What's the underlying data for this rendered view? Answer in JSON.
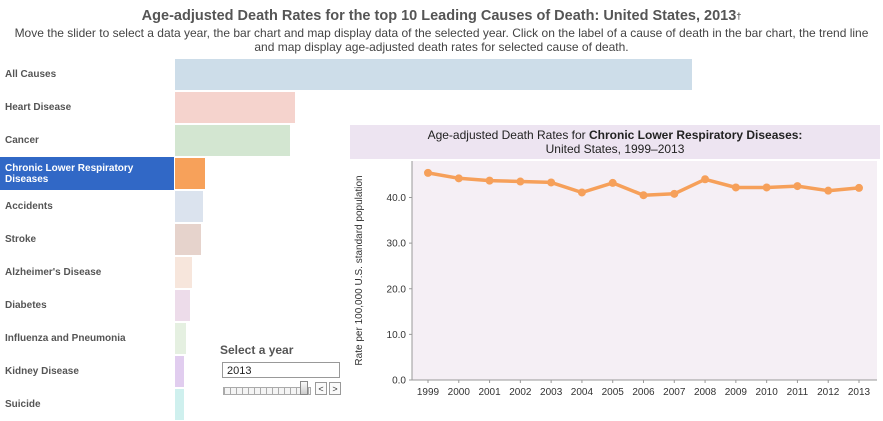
{
  "header": {
    "title": "Age-adjusted Death Rates for the top 10 Leading Causes of Death: United States, 2013",
    "title_mark": "†",
    "instructions": "Move the slider to select a data year, the bar chart and map display data of the selected year. Click on the label of a cause of death in the bar chart, the trend line and map display age-adjusted death rates for selected cause of death."
  },
  "causes": [
    {
      "label": "All Causes",
      "value": 731.9,
      "color": "#cddde9",
      "selected": false
    },
    {
      "label": "Heart Disease",
      "value": 169.8,
      "color": "#f5d3cd",
      "selected": false
    },
    {
      "label": "Cancer",
      "value": 163.2,
      "color": "#d3e6d1",
      "selected": false
    },
    {
      "label": "Chronic Lower Respiratory Diseases",
      "value": 42.1,
      "color": "#f7a15a",
      "selected": true
    },
    {
      "label": "Accidents",
      "value": 39.4,
      "color": "#dbe3ee",
      "selected": false
    },
    {
      "label": "Stroke",
      "value": 36.2,
      "color": "#e6d3cc",
      "selected": false
    },
    {
      "label": "Alzheimer's Disease",
      "value": 23.5,
      "color": "#f7e6dc",
      "selected": false
    },
    {
      "label": "Diabetes",
      "value": 21.2,
      "color": "#eddcea",
      "selected": false
    },
    {
      "label": "Influenza and Pneumonia",
      "value": 15.9,
      "color": "#e5f0e1",
      "selected": false
    },
    {
      "label": "Kidney Disease",
      "value": 13.2,
      "color": "#e1cdef",
      "selected": false
    },
    {
      "label": "Suicide",
      "value": 12.6,
      "color": "#cff0ee",
      "selected": false
    }
  ],
  "year_control": {
    "label": "Select a year",
    "value": "2013",
    "prev_symbol": "<",
    "next_symbol": ">"
  },
  "trend": {
    "title_prefix": "Age-adjusted Death Rates for ",
    "title_cause": "Chronic Lower Respiratory Diseases:",
    "title_line2": "United States, 1999–2013"
  },
  "chart_data": {
    "type": "line",
    "x": [
      "1999",
      "2000",
      "2001",
      "2002",
      "2003",
      "2004",
      "2005",
      "2006",
      "2007",
      "2008",
      "2009",
      "2010",
      "2011",
      "2012",
      "2013"
    ],
    "series": [
      {
        "values": [
          45.4,
          44.2,
          43.7,
          43.5,
          43.3,
          41.1,
          43.2,
          40.5,
          40.8,
          44.0,
          42.2,
          42.2,
          42.5,
          41.5,
          42.1
        ]
      }
    ],
    "ylabel": "Rate per 100,000 U.S. standard population",
    "xlabel": "",
    "yticks": [
      "0.0",
      "10.0",
      "20.0",
      "30.0",
      "40.0"
    ],
    "ylim": [
      0,
      48
    ],
    "line_color": "#f6a05a",
    "background": "#f5eff5",
    "grid": false
  }
}
